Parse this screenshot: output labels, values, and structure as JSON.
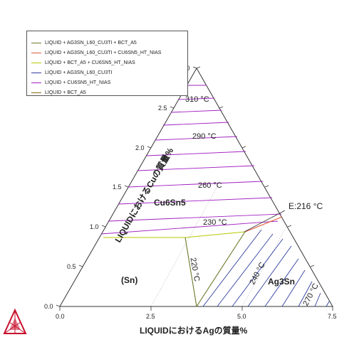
{
  "legend": {
    "entries": [
      {
        "label": "LIQUID + AG3SN_L60_CU3TI + BCT_A5",
        "color": "#6b7a2a"
      },
      {
        "label": "LIQUID + AG3SN_L60_CU3TI + CU6SN5_HT_NIAS",
        "color": "#e05a3a"
      },
      {
        "label": "LIQUID + BCT_A5 + CU6SN5_HT_NIAS",
        "color": "#b8c900"
      },
      {
        "label": "LIQUID + AG3SN_L60_CU3TI",
        "color": "#2f3fa0"
      },
      {
        "label": "LIQUID + CU6SN5_HT_NIAS",
        "color": "#a020c0"
      },
      {
        "label": "LIQUID + BCT_A5",
        "color": "#8a6a10"
      }
    ]
  },
  "axes": {
    "left_label": "LIQUIDにおけるCuの質量%",
    "bottom_label": "LIQUIDにおけるAgの質量%",
    "left_ticks": [
      "0.0",
      "0.5",
      "1.0",
      "1.5",
      "2.0",
      "2.5",
      "3.0"
    ],
    "bottom_ticks": [
      "0.0",
      "2.5",
      "5.0",
      "7.5"
    ]
  },
  "regions": {
    "cu6sn5": "Cu6Sn5",
    "sn": "(Sn)",
    "ag3sn": "Ag3Sn"
  },
  "isotherms": [
    "310 °C",
    "290 °C",
    "260 °C",
    "230 °C",
    "220 °C",
    "240 °C",
    "270 °C"
  ],
  "eutectic": "E:216 °C",
  "colors": {
    "frame": "#333333",
    "cu6sn5_lines": "#a020c0",
    "ag3sn_lines": "#2f3fa0",
    "sn_boundary": "#6b7a2a",
    "cu6sn5_sn_boundary": "#b8c900",
    "cu6sn5_ag3sn_boundary": "#e05a3a",
    "logo": "#c8102e"
  }
}
